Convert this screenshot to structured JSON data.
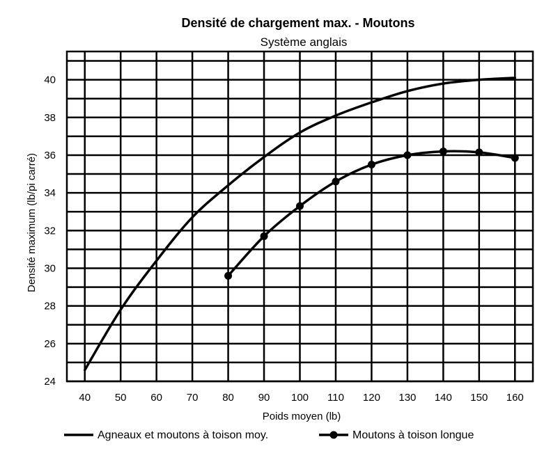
{
  "chart_data": {
    "type": "line",
    "title": "Densité de chargement max. - Moutons",
    "subtitle": "Système anglais",
    "xlabel": "Poids moyen (lb)",
    "ylabel": "Densité maximum (lb/pi carré)",
    "xlim": [
      35,
      165
    ],
    "ylim": [
      24,
      41.5
    ],
    "x_ticks": [
      40,
      50,
      60,
      70,
      80,
      90,
      100,
      110,
      120,
      130,
      140,
      150,
      160
    ],
    "y_ticks": [
      24,
      26,
      28,
      30,
      32,
      34,
      36,
      38,
      40
    ],
    "grid": true,
    "legend_position": "bottom",
    "series": [
      {
        "name": "Agneaux et moutons à toison moy.",
        "markers": false,
        "color": "#000000",
        "x": [
          40,
          50,
          60,
          70,
          80,
          90,
          100,
          110,
          120,
          130,
          140,
          150,
          160
        ],
        "y": [
          24.6,
          27.8,
          30.4,
          32.7,
          34.4,
          35.9,
          37.2,
          38.1,
          38.8,
          39.4,
          39.8,
          40.0,
          40.1
        ]
      },
      {
        "name": "Moutons à toison longue",
        "markers": true,
        "color": "#000000",
        "x": [
          80,
          90,
          100,
          110,
          120,
          130,
          140,
          150,
          160
        ],
        "y": [
          29.6,
          31.7,
          33.3,
          34.6,
          35.5,
          36.0,
          36.2,
          36.15,
          35.85
        ]
      }
    ]
  }
}
